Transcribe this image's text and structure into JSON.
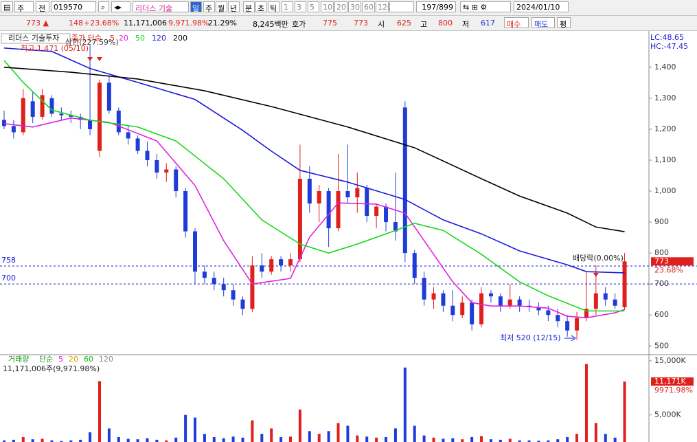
{
  "toolbar": {
    "period": "주",
    "mode": "전",
    "code": "019570",
    "name": "리더스 기술",
    "units": [
      "일",
      "주",
      "월",
      "년",
      "분",
      "초",
      "틱"
    ],
    "steps": [
      "1",
      "3",
      "5",
      "10",
      "20",
      "30",
      "60",
      "120"
    ],
    "count": "197/899",
    "date": "2024/01/10"
  },
  "info_bar": {
    "price": "773 ▲",
    "change": "148",
    "change_pct": "+23.68%",
    "volume": "11,171,006",
    "volume_pct": "9,971.98%",
    "turnover": "21.29%",
    "amount": "8,245백만",
    "quote_label": "호가",
    "ask": "775",
    "bid": "773",
    "open_label": "시",
    "open": "625",
    "high_label": "고",
    "high": "800",
    "low_label": "저",
    "low": "617",
    "buy": "매수",
    "sell": "매도",
    "avg": "평"
  },
  "chart_data": [
    {
      "type": "candlestick",
      "title": "리더스 기술투자",
      "ma_label": "종가 단순",
      "ma_short": "5",
      "ma_short_color": "#e0201c",
      "xlim": [
        -0.43,
        67.55
      ],
      "ylim": [
        474,
        1515
      ],
      "yticks": [
        500,
        600,
        700,
        800,
        900,
        {
          "value": 1000,
          "label": "1,000"
        },
        {
          "value": 1100,
          "label": "1,100"
        },
        {
          "value": 1200,
          "label": "1,200"
        },
        {
          "value": 1300,
          "label": "1,300"
        },
        {
          "value": 1400,
          "label": "1,400"
        }
      ],
      "up_color": "#e0201c",
      "down_color": "#1e3cd8",
      "candles": [
        [
          1230,
          1260,
          1200,
          1210
        ],
        [
          1210,
          1230,
          1170,
          1190
        ],
        [
          1190,
          1330,
          1180,
          1300
        ],
        [
          1290,
          1320,
          1220,
          1240
        ],
        [
          1240,
          1330,
          1230,
          1310
        ],
        [
          1300,
          1310,
          1240,
          1250
        ],
        [
          1250,
          1270,
          1230,
          1245
        ],
        [
          1245,
          1260,
          1220,
          1240
        ],
        [
          1240,
          1250,
          1200,
          1230
        ],
        [
          1230,
          1471,
          1180,
          1200
        ],
        [
          1130,
          1360,
          1110,
          1350
        ],
        [
          1350,
          1370,
          1250,
          1260
        ],
        [
          1260,
          1270,
          1180,
          1190
        ],
        [
          1190,
          1210,
          1150,
          1170
        ],
        [
          1170,
          1180,
          1120,
          1130
        ],
        [
          1130,
          1160,
          1080,
          1100
        ],
        [
          1100,
          1120,
          1040,
          1060
        ],
        [
          1060,
          1090,
          1030,
          1070
        ],
        [
          1070,
          1080,
          980,
          1000
        ],
        [
          1000,
          1010,
          850,
          870
        ],
        [
          870,
          880,
          700,
          740
        ],
        [
          740,
          760,
          700,
          720
        ],
        [
          720,
          740,
          680,
          700
        ],
        [
          700,
          720,
          660,
          680
        ],
        [
          680,
          700,
          630,
          650
        ],
        [
          650,
          660,
          600,
          620
        ],
        [
          620,
          790,
          610,
          760
        ],
        [
          760,
          800,
          720,
          740
        ],
        [
          740,
          790,
          730,
          780
        ],
        [
          780,
          790,
          740,
          760
        ],
        [
          760,
          800,
          740,
          780
        ],
        [
          780,
          1150,
          770,
          1040
        ],
        [
          1040,
          1080,
          930,
          960
        ],
        [
          960,
          1020,
          900,
          1000
        ],
        [
          1000,
          1010,
          820,
          880
        ],
        [
          880,
          1120,
          870,
          1000
        ],
        [
          1000,
          1150,
          960,
          980
        ],
        [
          980,
          1060,
          930,
          1010
        ],
        [
          1010,
          1020,
          900,
          920
        ],
        [
          920,
          960,
          880,
          950
        ],
        [
          950,
          960,
          870,
          900
        ],
        [
          900,
          1060,
          840,
          870
        ],
        [
          1270,
          1290,
          770,
          800
        ],
        [
          800,
          810,
          700,
          720
        ],
        [
          720,
          740,
          630,
          650
        ],
        [
          650,
          690,
          620,
          670
        ],
        [
          670,
          680,
          610,
          630
        ],
        [
          630,
          680,
          580,
          600
        ],
        [
          600,
          660,
          590,
          640
        ],
        [
          640,
          650,
          550,
          570
        ],
        [
          570,
          690,
          560,
          670
        ],
        [
          670,
          680,
          640,
          660
        ],
        [
          660,
          670,
          610,
          630
        ],
        [
          630,
          700,
          620,
          650
        ],
        [
          650,
          660,
          610,
          630
        ],
        [
          630,
          650,
          610,
          625
        ],
        [
          625,
          640,
          600,
          615
        ],
        [
          615,
          630,
          580,
          600
        ],
        [
          600,
          620,
          560,
          580
        ],
        [
          580,
          600,
          530,
          550
        ],
        [
          550,
          610,
          520,
          590
        ],
        [
          590,
          740,
          580,
          620
        ],
        [
          620,
          760,
          600,
          670
        ],
        [
          670,
          690,
          630,
          650
        ],
        [
          650,
          670,
          620,
          630
        ],
        [
          625,
          800,
          617,
          773
        ]
      ],
      "series": [
        {
          "name": "20",
          "color": "#e020e0",
          "x": [
            0,
            3,
            7,
            11,
            16,
            20,
            23,
            26,
            30,
            32,
            35,
            39,
            42,
            44,
            47,
            49,
            51,
            54,
            57,
            59,
            61,
            64,
            65
          ],
          "values": [
            1218,
            1207,
            1236,
            1222,
            1162,
            1018,
            840,
            700,
            718,
            851,
            962,
            958,
            929,
            840,
            707,
            640,
            629,
            629,
            622,
            596,
            591,
            607,
            618
          ]
        },
        {
          "name": "50",
          "color": "#18d818",
          "x": [
            0,
            2,
            5,
            9,
            14,
            18,
            23,
            27,
            31,
            34,
            37,
            41,
            43,
            46,
            50,
            54,
            57,
            61,
            65
          ],
          "values": [
            1422,
            1351,
            1262,
            1229,
            1207,
            1162,
            1040,
            907,
            829,
            800,
            829,
            873,
            896,
            873,
            796,
            707,
            662,
            613,
            613
          ]
        },
        {
          "name": "120",
          "color": "#1a1adc",
          "x": [
            0,
            5,
            9,
            14,
            20,
            25,
            28,
            31,
            36,
            42,
            46,
            50,
            54,
            59,
            61,
            65
          ],
          "values": [
            1462,
            1451,
            1396,
            1351,
            1296,
            1196,
            1129,
            1067,
            1029,
            973,
            907,
            862,
            807,
            762,
            740,
            736
          ]
        },
        {
          "name": "200",
          "color": "#000000",
          "x": [
            0,
            7,
            14,
            21,
            28,
            36,
            43,
            50,
            54,
            59,
            62,
            65
          ],
          "values": [
            1400,
            1384,
            1362,
            1324,
            1273,
            1207,
            1140,
            1040,
            984,
            929,
            884,
            869
          ]
        }
      ],
      "ref_lines": [
        758,
        700
      ],
      "high_note": "최고 1,471 (05/10)",
      "limit_note": "상한(227.59%)",
      "low_note": "최저 520 (12/15)",
      "exdiv_note": "배당락(0.00%)",
      "change_note": "23.68%",
      "lc": "LC:48.65",
      "hc": "HC:-47.45"
    },
    {
      "type": "bar",
      "title": "거래량",
      "ma_label": "단순",
      "ma_names": [
        {
          "name": "5",
          "color": "#e020e0"
        },
        {
          "name": "20",
          "color": "#e0a000"
        },
        {
          "name": "60",
          "color": "#18b818"
        },
        {
          "name": "120",
          "color": "#888888"
        }
      ],
      "summary": "11,171,006주(9,971.98%)",
      "ylim": [
        0,
        16000
      ],
      "yticks": [
        {
          "value": 5000,
          "label": "5,000K"
        },
        {
          "value": 15000,
          "label": "15,000K"
        }
      ],
      "values": [
        300,
        400,
        900,
        500,
        600,
        300,
        200,
        300,
        400,
        1800,
        11250,
        2500,
        900,
        600,
        500,
        700,
        400,
        300,
        800,
        5000,
        4500,
        1500,
        900,
        700,
        1000,
        800,
        4000,
        1500,
        2500,
        900,
        1000,
        6000,
        2000,
        1500,
        2000,
        3500,
        3000,
        1200,
        1000,
        800,
        900,
        2500,
        13750,
        3000,
        1200,
        800,
        600,
        700,
        500,
        900,
        1100,
        500,
        400,
        600,
        300,
        300,
        250,
        300,
        500,
        900,
        1500,
        14400,
        3500,
        1500,
        800,
        11171
      ],
      "last_label": "11,171K",
      "last_pct": "9971.98%"
    }
  ]
}
